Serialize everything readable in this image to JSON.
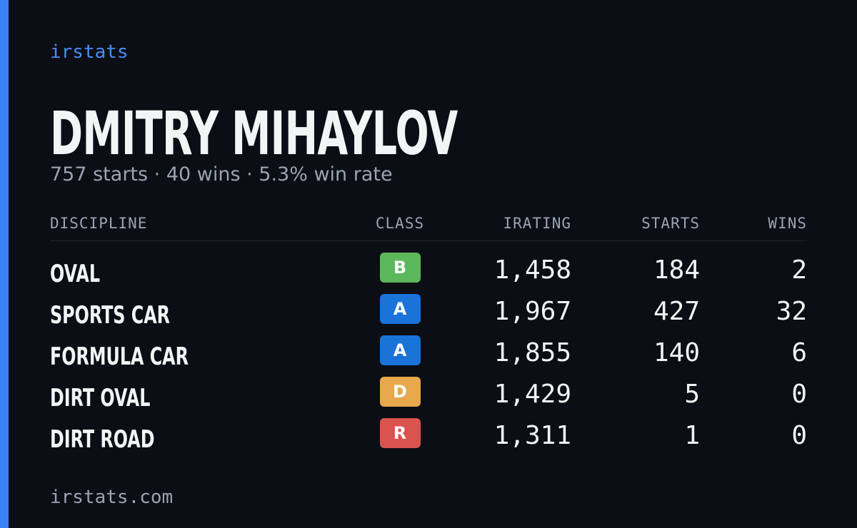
{
  "brand": "irstats",
  "driver": {
    "name": "DMITRY MIHAYLOV",
    "summary": "757 starts · 40 wins · 5.3% win rate"
  },
  "table": {
    "headers": [
      "DISCIPLINE",
      "CLASS",
      "IRATING",
      "STARTS",
      "WINS"
    ],
    "rows": [
      {
        "discipline": "OVAL",
        "class": "B",
        "color": "#5cb85c",
        "irating": "1,458",
        "starts": "184",
        "wins": "2"
      },
      {
        "discipline": "SPORTS CAR",
        "class": "A",
        "color": "#1a73d9",
        "irating": "1,967",
        "starts": "427",
        "wins": "32"
      },
      {
        "discipline": "FORMULA CAR",
        "class": "A",
        "color": "#1a73d9",
        "irating": "1,855",
        "starts": "140",
        "wins": "6"
      },
      {
        "discipline": "DIRT OVAL",
        "class": "D",
        "color": "#e8a84c",
        "irating": "1,429",
        "starts": "5",
        "wins": "0"
      },
      {
        "discipline": "DIRT ROAD",
        "class": "R",
        "color": "#d9534f",
        "irating": "1,311",
        "starts": "1",
        "wins": "0"
      }
    ]
  },
  "footer": "irstats.com"
}
